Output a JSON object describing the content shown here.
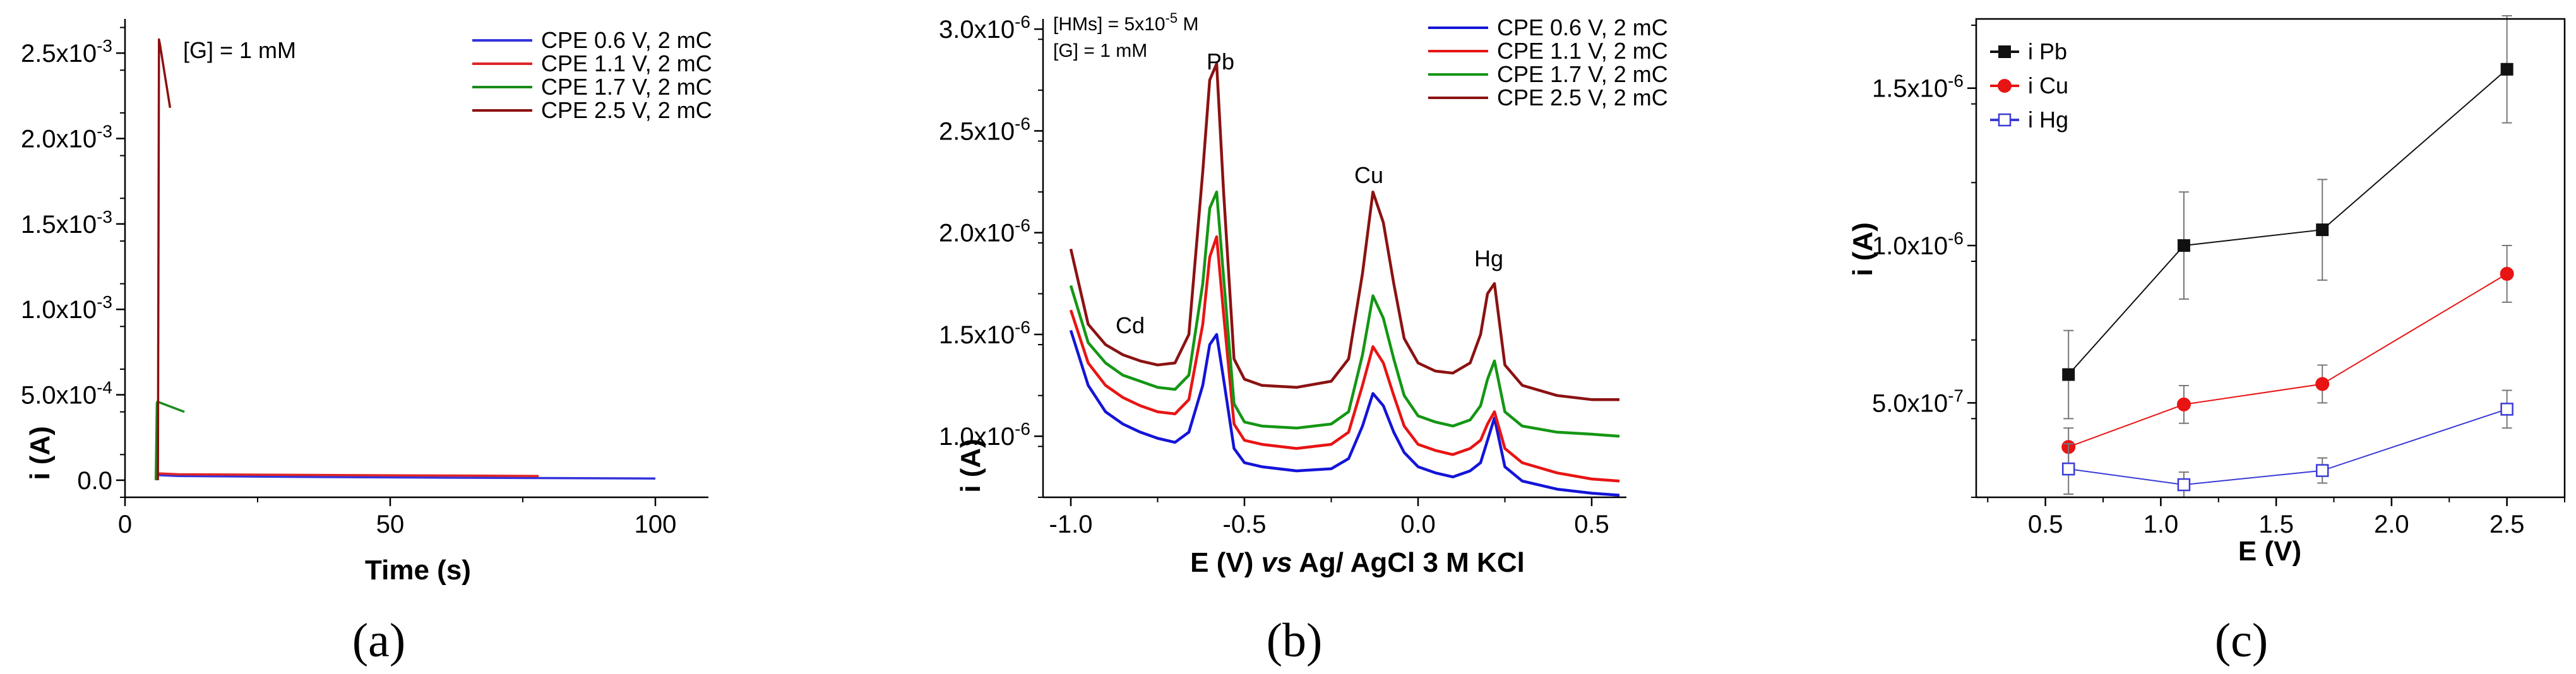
{
  "chart_data": [
    {
      "type": "line",
      "panel_label": "(a)",
      "xlabel": "Time (s)",
      "ylabel": "i (A)",
      "xlim": [
        0,
        110
      ],
      "ylim": [
        -0.0001,
        0.0027
      ],
      "xticks": [
        "0",
        "50",
        "100"
      ],
      "xtick_values": [
        0,
        50,
        100
      ],
      "ytick_values": [
        0,
        0.0005,
        0.001,
        0.0015,
        0.002,
        0.0025
      ],
      "ytick_mantissas": [
        "0.0",
        "5.0x10",
        "1.0x10",
        "1.5x10",
        "2.0x10",
        "2.5x10"
      ],
      "ytick_exponents": [
        "",
        "-4",
        "-3",
        "-3",
        "-3",
        "-3"
      ],
      "annotation": "[G] = 1 mM",
      "series": [
        {
          "name": "CPE 0.6 V, 2 mC",
          "color": "#3333dd",
          "x": [
            6.0,
            6.1,
            6.3,
            10,
            30,
            60,
            100
          ],
          "y": [
            0,
            3e-05,
            3e-05,
            2.5e-05,
            2e-05,
            1.5e-05,
            1e-05
          ]
        },
        {
          "name": "CPE 1.1 V, 2 mC",
          "color": "#e02424",
          "x": [
            6.0,
            6.1,
            6.3,
            10,
            40,
            78
          ],
          "y": [
            0,
            5e-05,
            4e-05,
            3.5e-05,
            3e-05,
            2.5e-05
          ]
        },
        {
          "name": "CPE 1.7 V, 2 mC",
          "color": "#1a8a1a",
          "x": [
            5.8,
            6.0,
            6.1,
            11.2
          ],
          "y": [
            0,
            0.00045,
            0.00046,
            0.0004
          ]
        },
        {
          "name": "CPE 2.5 V, 2 mC",
          "color": "#8b0f0f",
          "x": [
            6.2,
            6.4,
            6.6,
            8.5
          ],
          "y": [
            0,
            0.00258,
            0.00255,
            0.00218
          ]
        }
      ]
    },
    {
      "type": "line",
      "panel_label": "(b)",
      "xlabel_pre": "E (V) ",
      "xlabel_italic": "vs",
      "xlabel_post": " Ag/ AgCl 3 M KCl",
      "ylabel": "i (A)",
      "xlim": [
        -1.08,
        0.6
      ],
      "ylim": [
        7e-07,
        3.05e-06
      ],
      "xticks": [
        "-1.0",
        "-0.5",
        "0.0",
        "0.5"
      ],
      "xtick_values": [
        -1.0,
        -0.5,
        0.0,
        0.5
      ],
      "ytick_values": [
        1e-06,
        1.5e-06,
        2e-06,
        2.5e-06,
        3e-06
      ],
      "ytick_mantissas": [
        "1.0x10",
        "1.5x10",
        "2.0x10",
        "2.5x10",
        "3.0x10"
      ],
      "ytick_exponents": [
        "-6",
        "-6",
        "-6",
        "-6",
        "-6"
      ],
      "annotations": {
        "line1_pre": "[HMs] = 5x10",
        "line1_exp": "-5",
        "line1_post": " M",
        "line2": "[G] = 1 mM",
        "cd": "Cd",
        "pb": "Pb",
        "cu": "Cu",
        "hg": "Hg"
      },
      "series": [
        {
          "name": "CPE 0.6 V, 2 mC",
          "color": "#1414d8",
          "x": [
            -1.0,
            -0.95,
            -0.9,
            -0.85,
            -0.8,
            -0.75,
            -0.7,
            -0.66,
            -0.62,
            -0.6,
            -0.58,
            -0.56,
            -0.53,
            -0.5,
            -0.45,
            -0.35,
            -0.25,
            -0.2,
            -0.16,
            -0.13,
            -0.1,
            -0.07,
            -0.04,
            0.0,
            0.05,
            0.1,
            0.15,
            0.18,
            0.2,
            0.22,
            0.25,
            0.3,
            0.4,
            0.5,
            0.58
          ],
          "y": [
            1.52e-06,
            1.25e-06,
            1.12e-06,
            1.06e-06,
            1.02e-06,
            9.9e-07,
            9.7e-07,
            1.02e-06,
            1.25e-06,
            1.45e-06,
            1.5e-06,
            1.28e-06,
            9.4e-07,
            8.7e-07,
            8.5e-07,
            8.3e-07,
            8.4e-07,
            8.9e-07,
            1.05e-06,
            1.21e-06,
            1.15e-06,
            1.02e-06,
            9.2e-07,
            8.5e-07,
            8.2e-07,
            8e-07,
            8.3e-07,
            8.7e-07,
            9.8e-07,
            1.09e-06,
            8.5e-07,
            7.8e-07,
            7.4e-07,
            7.2e-07,
            7.1e-07
          ]
        },
        {
          "name": "CPE 1.1 V, 2 mC",
          "color": "#e81414",
          "x": [
            -1.0,
            -0.95,
            -0.9,
            -0.85,
            -0.8,
            -0.75,
            -0.7,
            -0.66,
            -0.62,
            -0.6,
            -0.58,
            -0.56,
            -0.53,
            -0.5,
            -0.45,
            -0.35,
            -0.25,
            -0.2,
            -0.16,
            -0.13,
            -0.1,
            -0.07,
            -0.04,
            0.0,
            0.05,
            0.1,
            0.15,
            0.18,
            0.2,
            0.22,
            0.25,
            0.3,
            0.4,
            0.5,
            0.58
          ],
          "y": [
            1.62e-06,
            1.36e-06,
            1.25e-06,
            1.19e-06,
            1.15e-06,
            1.12e-06,
            1.11e-06,
            1.18e-06,
            1.55e-06,
            1.88e-06,
            1.98e-06,
            1.6e-06,
            1.06e-06,
            9.8e-07,
            9.6e-07,
            9.4e-07,
            9.6e-07,
            1.02e-06,
            1.25e-06,
            1.44e-06,
            1.36e-06,
            1.2e-06,
            1.05e-06,
            9.6e-07,
            9.3e-07,
            9.1e-07,
            9.4e-07,
            9.8e-07,
            1.06e-06,
            1.12e-06,
            9.4e-07,
            8.7e-07,
            8.2e-07,
            7.9e-07,
            7.8e-07
          ]
        },
        {
          "name": "CPE 1.7 V, 2 mC",
          "color": "#149614",
          "x": [
            -1.0,
            -0.95,
            -0.9,
            -0.85,
            -0.8,
            -0.75,
            -0.7,
            -0.66,
            -0.62,
            -0.6,
            -0.58,
            -0.56,
            -0.53,
            -0.5,
            -0.45,
            -0.35,
            -0.25,
            -0.2,
            -0.16,
            -0.13,
            -0.1,
            -0.07,
            -0.04,
            0.0,
            0.05,
            0.1,
            0.15,
            0.18,
            0.2,
            0.22,
            0.25,
            0.3,
            0.4,
            0.5,
            0.58
          ],
          "y": [
            1.74e-06,
            1.46e-06,
            1.36e-06,
            1.3e-06,
            1.27e-06,
            1.24e-06,
            1.23e-06,
            1.3e-06,
            1.75e-06,
            2.12e-06,
            2.2e-06,
            1.78e-06,
            1.16e-06,
            1.07e-06,
            1.05e-06,
            1.04e-06,
            1.06e-06,
            1.12e-06,
            1.4e-06,
            1.69e-06,
            1.58e-06,
            1.38e-06,
            1.2e-06,
            1.1e-06,
            1.07e-06,
            1.05e-06,
            1.08e-06,
            1.15e-06,
            1.28e-06,
            1.37e-06,
            1.12e-06,
            1.05e-06,
            1.02e-06,
            1.01e-06,
            1e-06
          ]
        },
        {
          "name": "CPE 2.5 V, 2 mC",
          "color": "#8b1212",
          "x": [
            -1.0,
            -0.95,
            -0.9,
            -0.85,
            -0.8,
            -0.75,
            -0.7,
            -0.66,
            -0.62,
            -0.6,
            -0.58,
            -0.56,
            -0.53,
            -0.5,
            -0.45,
            -0.35,
            -0.25,
            -0.2,
            -0.16,
            -0.13,
            -0.1,
            -0.07,
            -0.04,
            0.0,
            0.05,
            0.1,
            0.15,
            0.18,
            0.2,
            0.22,
            0.25,
            0.3,
            0.4,
            0.5,
            0.58
          ],
          "y": [
            1.92e-06,
            1.55e-06,
            1.45e-06,
            1.4e-06,
            1.37e-06,
            1.35e-06,
            1.36e-06,
            1.5e-06,
            2.3e-06,
            2.75e-06,
            2.83e-06,
            2.2e-06,
            1.38e-06,
            1.28e-06,
            1.25e-06,
            1.24e-06,
            1.27e-06,
            1.38e-06,
            1.8e-06,
            2.2e-06,
            2.05e-06,
            1.75e-06,
            1.48e-06,
            1.36e-06,
            1.32e-06,
            1.31e-06,
            1.36e-06,
            1.5e-06,
            1.7e-06,
            1.75e-06,
            1.35e-06,
            1.25e-06,
            1.2e-06,
            1.18e-06,
            1.18e-06
          ]
        }
      ]
    },
    {
      "type": "scatter",
      "panel_label": "(c)",
      "xlabel": "E (V)",
      "ylabel": "i (A)",
      "xlim": [
        0.2,
        2.75
      ],
      "ylim": [
        2e-07,
        1.72e-06
      ],
      "xticks": [
        "0.5",
        "1.0",
        "1.5",
        "2.0",
        "2.5"
      ],
      "xtick_values": [
        0.5,
        1.0,
        1.5,
        2.0,
        2.5
      ],
      "ytick_values": [
        5e-07,
        1e-06,
        1.5e-06
      ],
      "ytick_mantissas": [
        "5.0x10",
        "1.0x10",
        "1.5x10"
      ],
      "ytick_exponents": [
        "-7",
        "-6",
        "-6"
      ],
      "series": [
        {
          "name": "i Pb",
          "color": "#111111",
          "marker": "square",
          "x": [
            0.6,
            1.1,
            1.7,
            2.5
          ],
          "y": [
            5.9e-07,
            1e-06,
            1.05e-06,
            1.56e-06
          ],
          "err": [
            1.4e-07,
            1.7e-07,
            1.6e-07,
            1.7e-07
          ]
        },
        {
          "name": "i Cu",
          "color": "#e81414",
          "marker": "circle",
          "x": [
            0.6,
            1.1,
            1.7,
            2.5
          ],
          "y": [
            3.6e-07,
            4.95e-07,
            5.6e-07,
            9.1e-07
          ],
          "err": [
            6e-08,
            6e-08,
            6e-08,
            9e-08
          ]
        },
        {
          "name": "i Hg",
          "color": "#3b3bd6",
          "marker": "open-square",
          "x": [
            0.6,
            1.1,
            1.7,
            2.5
          ],
          "y": [
            2.9e-07,
            2.4e-07,
            2.85e-07,
            4.8e-07
          ],
          "err": [
            8e-08,
            4e-08,
            4e-08,
            6e-08
          ]
        }
      ]
    }
  ]
}
